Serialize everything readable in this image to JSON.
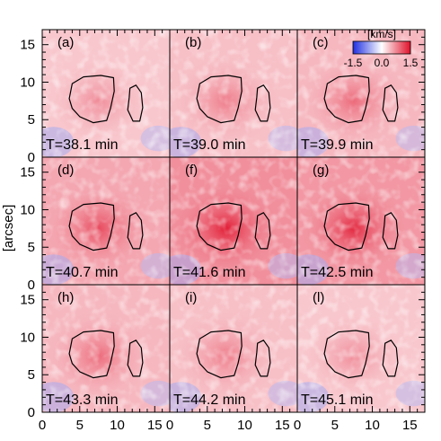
{
  "chart_data": {
    "type": "heatmap",
    "title": "",
    "xlabel": "",
    "ylabel": "[arcsec]",
    "xlim": [
      0,
      17
    ],
    "ylim": [
      0,
      17
    ],
    "x_ticks": [
      "0",
      "5",
      "10",
      "15"
    ],
    "y_ticks": [
      "0",
      "5",
      "10",
      "15"
    ],
    "colorbar": {
      "unit": "[km/s]",
      "min_label": "-1.5",
      "mid_label": "0.0",
      "max_label": "1.5",
      "range": [
        -1.5,
        1.5
      ],
      "colors": {
        "negative": "#1f2fe0",
        "zero": "#ffffff",
        "positive": "#e0102a"
      }
    },
    "panels": [
      {
        "label": "(a)",
        "time": "T=38.1 min",
        "mean_velocity": 0.35
      },
      {
        "label": "(b)",
        "time": "T=39.0 min",
        "mean_velocity": 0.4
      },
      {
        "label": "(c)",
        "time": "T=39.9 min",
        "mean_velocity": 0.45
      },
      {
        "label": "(d)",
        "time": "T=40.7 min",
        "mean_velocity": 0.55
      },
      {
        "label": "(f)",
        "time": "T=41.6 min",
        "mean_velocity": 0.7
      },
      {
        "label": "(g)",
        "time": "T=42.5 min",
        "mean_velocity": 0.65
      },
      {
        "label": "(h)",
        "time": "T=43.3 min",
        "mean_velocity": 0.45
      },
      {
        "label": "(i)",
        "time": "T=44.2 min",
        "mean_velocity": 0.4
      },
      {
        "label": "(l)",
        "time": "T=45.1 min",
        "mean_velocity": 0.35
      }
    ],
    "contours": [
      {
        "name": "left-pore",
        "points": [
          [
            3.6,
            7.8
          ],
          [
            4.0,
            9.8
          ],
          [
            5.5,
            10.7
          ],
          [
            7.8,
            10.9
          ],
          [
            9.5,
            10.6
          ],
          [
            9.6,
            8.8
          ],
          [
            9.1,
            6.5
          ],
          [
            8.6,
            4.9
          ],
          [
            6.8,
            4.6
          ],
          [
            5.0,
            5.4
          ],
          [
            4.0,
            6.5
          ]
        ]
      },
      {
        "name": "right-pore",
        "points": [
          [
            11.7,
            9.2
          ],
          [
            12.5,
            9.6
          ],
          [
            13.2,
            8.6
          ],
          [
            13.4,
            6.6
          ],
          [
            13.0,
            4.8
          ],
          [
            12.1,
            4.8
          ],
          [
            11.4,
            6.3
          ],
          [
            11.6,
            8.0
          ]
        ]
      }
    ]
  }
}
